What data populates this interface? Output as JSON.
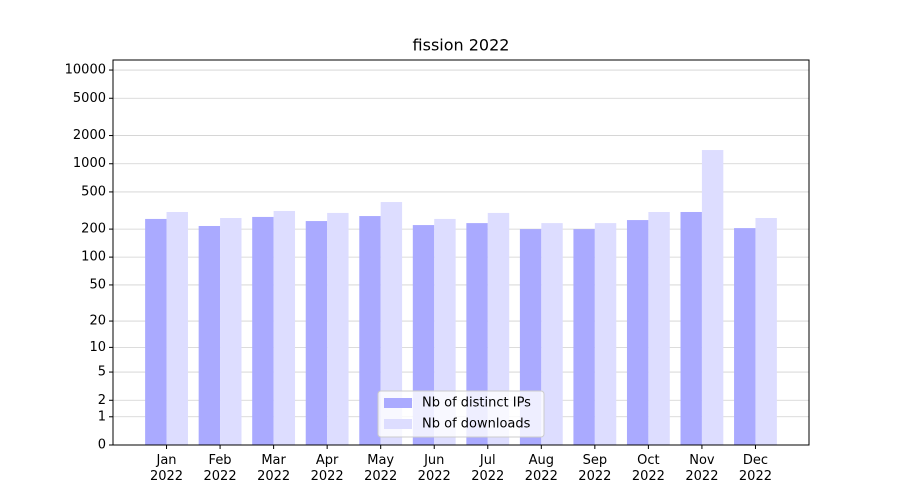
{
  "chart_data": {
    "type": "bar",
    "title": "fission 2022",
    "categories": [
      "Jan\n2022",
      "Feb\n2022",
      "Mar\n2022",
      "Apr\n2022",
      "May\n2022",
      "Jun\n2022",
      "Jul\n2022",
      "Aug\n2022",
      "Sep\n2022",
      "Oct\n2022",
      "Nov\n2022",
      "Dec\n2022"
    ],
    "series": [
      {
        "name": "Nb of distinct IPs",
        "color": "#aaaaff",
        "values": [
          257,
          216,
          270,
          244,
          276,
          221,
          232,
          200,
          200,
          250,
          305,
          205
        ]
      },
      {
        "name": "Nb of downloads",
        "color": "#ddddff",
        "values": [
          305,
          263,
          313,
          298,
          390,
          257,
          298,
          232,
          232,
          305,
          1401,
          263
        ]
      }
    ],
    "yscale": "log1p",
    "ylim": [
      0,
      12800
    ],
    "yticks": [
      0,
      1,
      2,
      5,
      10,
      20,
      50,
      100,
      200,
      500,
      1000,
      2000,
      5000,
      10000
    ],
    "grid": true,
    "legend": "lower center"
  }
}
